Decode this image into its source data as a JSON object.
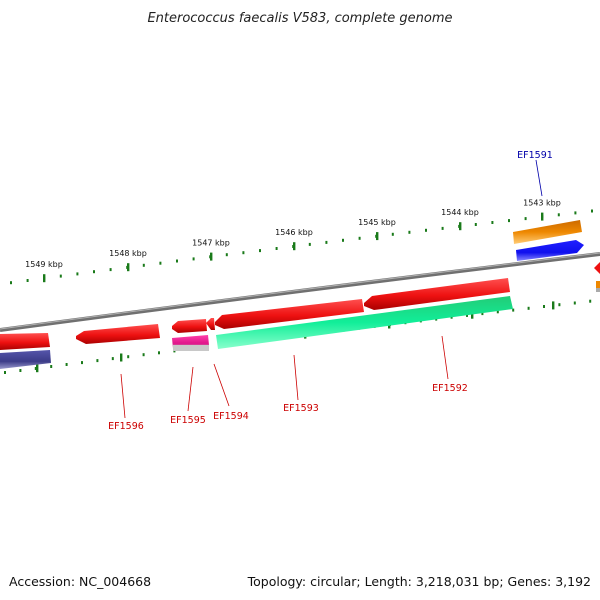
{
  "title": "Enterococcus faecalis V583, complete genome",
  "footer": {
    "accession": "Accession: NC_004668",
    "summary": "Topology: circular; Length: 3,218,031 bp; Genes: 3,192"
  },
  "colors": {
    "backbone": "#8a8a8a",
    "ticks": "#1a7a1a",
    "label_reverse": "#cc0000",
    "label_forward": "#0000aa",
    "gene_red": "#ee1111",
    "gene_green": "#11dd88",
    "gene_pink": "#e0158a",
    "gene_orange": "#ee8800",
    "gene_blue": "#1010ee",
    "gene_navy": "#3c3c88"
  },
  "scale_labels": [
    "1549 kbp",
    "1548 kbp",
    "1547 kbp",
    "1546 kbp",
    "1545 kbp",
    "1544 kbp",
    "1543 kbp"
  ],
  "gene_labels": [
    {
      "id": "EF1596",
      "strand": "reverse"
    },
    {
      "id": "EF1595",
      "strand": "reverse"
    },
    {
      "id": "EF1594",
      "strand": "reverse"
    },
    {
      "id": "EF1593",
      "strand": "reverse"
    },
    {
      "id": "EF1592",
      "strand": "reverse"
    },
    {
      "id": "EF1591",
      "strand": "forward"
    }
  ]
}
